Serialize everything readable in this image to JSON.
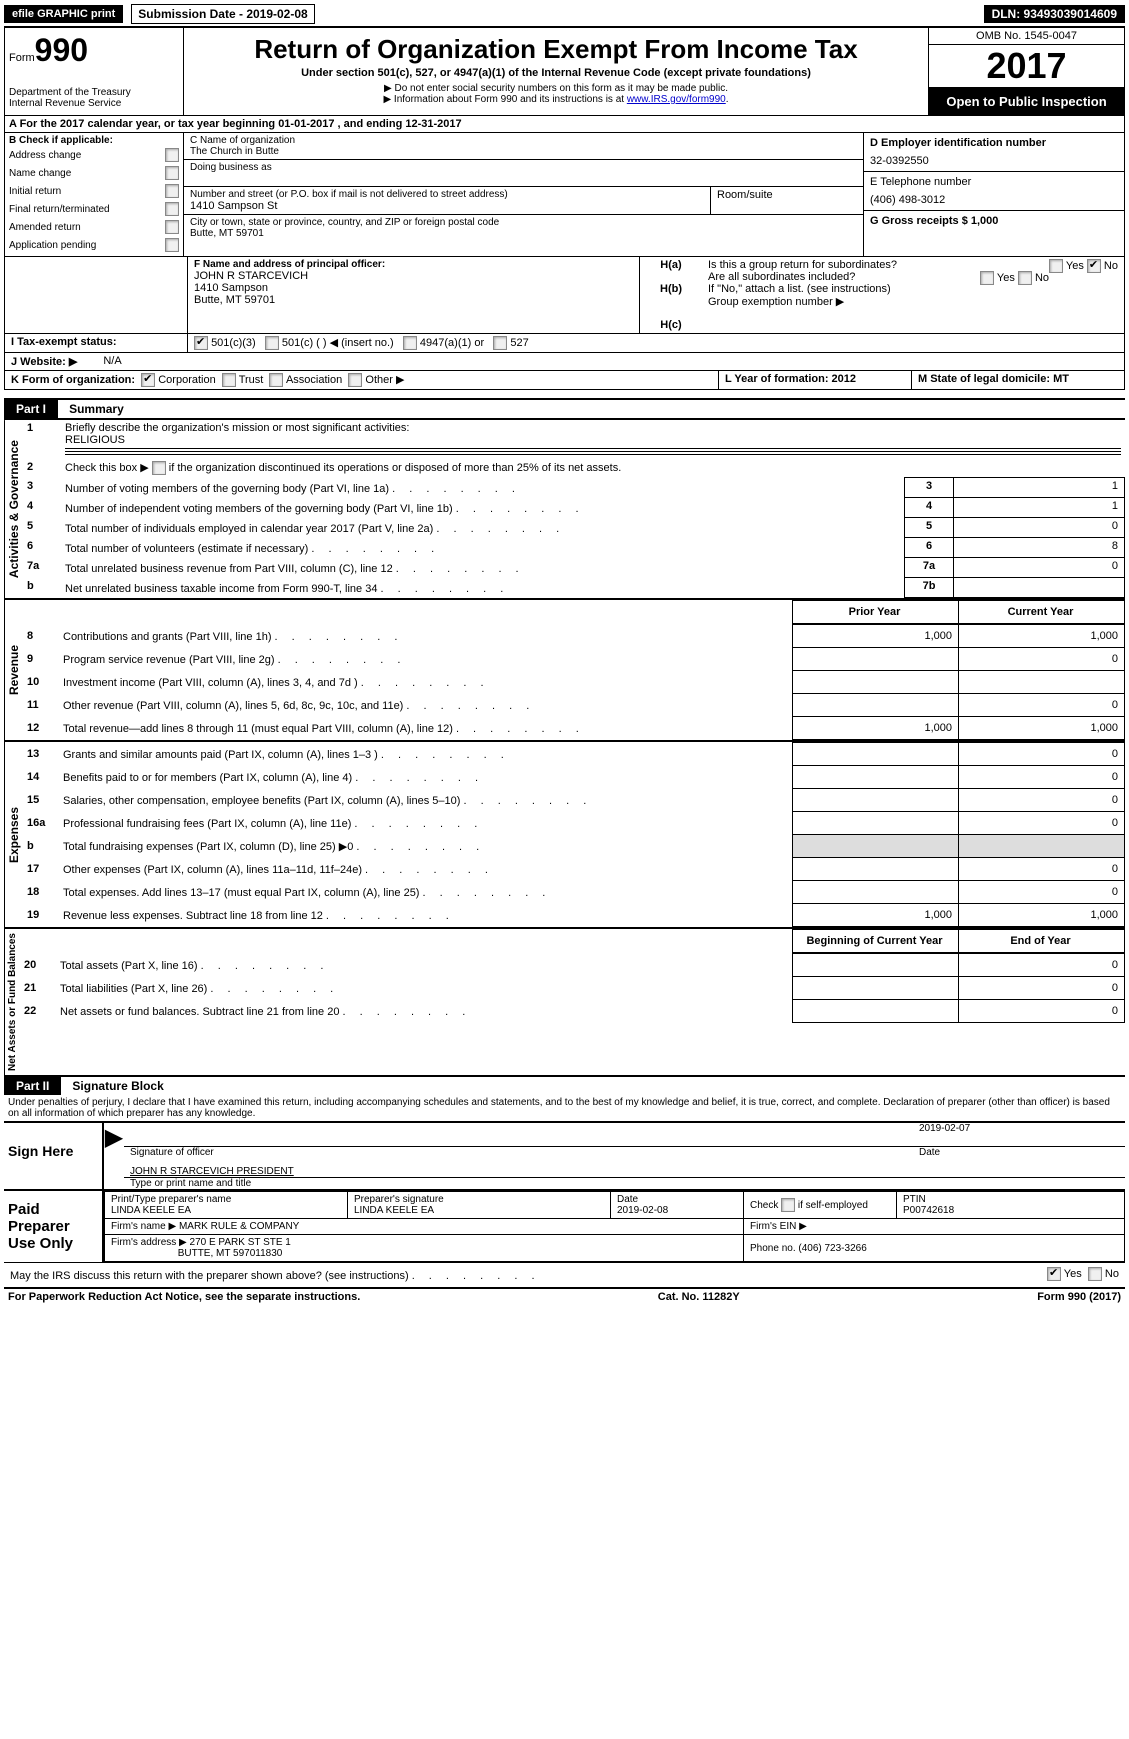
{
  "top": {
    "efile": "efile GRAPHIC print",
    "submission": "Submission Date - 2019-02-08",
    "dln": "DLN: 93493039014609"
  },
  "header": {
    "form_prefix": "Form",
    "form_number": "990",
    "dept1": "Department of the Treasury",
    "dept2": "Internal Revenue Service",
    "title": "Return of Organization Exempt From Income Tax",
    "subtitle": "Under section 501(c), 527, or 4947(a)(1) of the Internal Revenue Code (except private foundations)",
    "note1": "▶ Do not enter social security numbers on this form as it may be made public.",
    "note2_pre": "▶ Information about Form 990 and its instructions is at ",
    "note2_link": "www.IRS.gov/form990",
    "note2_post": ".",
    "omb": "OMB No. 1545-0047",
    "year": "2017",
    "open": "Open to Public Inspection"
  },
  "lineA": "A   For the 2017 calendar year, or tax year beginning 01-01-2017       , and ending 12-31-2017",
  "colB": {
    "heading": "B Check if applicable:",
    "items": [
      "Address change",
      "Name change",
      "Initial return",
      "Final return/terminated",
      "Amended return",
      "Application pending"
    ]
  },
  "colC": {
    "name_label": "C Name of organization",
    "name": "The Church in Butte",
    "dba_label": "Doing business as",
    "street_label": "Number and street (or P.O. box if mail is not delivered to street address)",
    "street": "1410 Sampson St",
    "room_label": "Room/suite",
    "city_label": "City or town, state or province, country, and ZIP or foreign postal code",
    "city": "Butte, MT  59701",
    "officer_label": "F Name and address of principal officer:",
    "officer_name": "JOHN R STARCEVICH",
    "officer_addr1": "1410 Sampson",
    "officer_addr2": "Butte, MT  59701"
  },
  "colD": {
    "ein_label": "D Employer identification number",
    "ein": "32-0392550",
    "phone_label": "E Telephone number",
    "phone": "(406) 498-3012",
    "gross_label": "G Gross receipts $ 1,000"
  },
  "colH": {
    "ha": "Is this a group return for subordinates?",
    "hb": "Are all subordinates included?",
    "hb_note": "If \"No,\" attach a list. (see instructions)",
    "hc": "Group exemption number ▶"
  },
  "rowI": {
    "label": "I     Tax-exempt status:",
    "opt1": "501(c)(3)",
    "opt2": "501(c) (   ) ◀ (insert no.)",
    "opt3": "4947(a)(1) or",
    "opt4": "527"
  },
  "rowJ": {
    "label": "J   Website: ▶",
    "val": "N/A"
  },
  "rowK": {
    "label": "K Form of organization:",
    "opts": [
      "Corporation",
      "Trust",
      "Association",
      "Other ▶"
    ]
  },
  "rowL": {
    "label": "L Year of formation: 2012"
  },
  "rowM": {
    "label": "M State of legal domicile: MT"
  },
  "part1": {
    "header": "Part I",
    "title": "Summary",
    "side_gov": "Activities & Governance",
    "side_rev": "Revenue",
    "side_exp": "Expenses",
    "side_net": "Net Assets or Fund Balances",
    "line1": "Briefly describe the organization's mission or most significant activities:",
    "mission": "RELIGIOUS",
    "line2": "Check this box ▶          if the organization discontinued its operations or disposed of more than 25% of its net assets.",
    "rows_gov": [
      {
        "n": "3",
        "t": "Number of voting members of the governing body (Part VI, line 1a)",
        "box": "3",
        "v": "1"
      },
      {
        "n": "4",
        "t": "Number of independent voting members of the governing body (Part VI, line 1b)",
        "box": "4",
        "v": "1"
      },
      {
        "n": "5",
        "t": "Total number of individuals employed in calendar year 2017 (Part V, line 2a)",
        "box": "5",
        "v": "0"
      },
      {
        "n": "6",
        "t": "Total number of volunteers (estimate if necessary)",
        "box": "6",
        "v": "8"
      },
      {
        "n": "7a",
        "t": "Total unrelated business revenue from Part VIII, column (C), line 12",
        "box": "7a",
        "v": "0"
      },
      {
        "n": "b",
        "t": "Net unrelated business taxable income from Form 990-T, line 34",
        "box": "7b",
        "v": ""
      }
    ],
    "prior": "Prior Year",
    "current": "Current Year",
    "rows_rev": [
      {
        "n": "8",
        "t": "Contributions and grants (Part VIII, line 1h)",
        "p": "1,000",
        "c": "1,000"
      },
      {
        "n": "9",
        "t": "Program service revenue (Part VIII, line 2g)",
        "p": "",
        "c": "0"
      },
      {
        "n": "10",
        "t": "Investment income (Part VIII, column (A), lines 3, 4, and 7d )",
        "p": "",
        "c": ""
      },
      {
        "n": "11",
        "t": "Other revenue (Part VIII, column (A), lines 5, 6d, 8c, 9c, 10c, and 11e)",
        "p": "",
        "c": "0"
      },
      {
        "n": "12",
        "t": "Total revenue—add lines 8 through 11 (must equal Part VIII, column (A), line 12)",
        "p": "1,000",
        "c": "1,000"
      }
    ],
    "rows_exp": [
      {
        "n": "13",
        "t": "Grants and similar amounts paid (Part IX, column (A), lines 1–3 )",
        "p": "",
        "c": "0"
      },
      {
        "n": "14",
        "t": "Benefits paid to or for members (Part IX, column (A), line 4)",
        "p": "",
        "c": "0"
      },
      {
        "n": "15",
        "t": "Salaries, other compensation, employee benefits (Part IX, column (A), lines 5–10)",
        "p": "",
        "c": "0"
      },
      {
        "n": "16a",
        "t": "Professional fundraising fees (Part IX, column (A), line 11e)",
        "p": "",
        "c": "0"
      },
      {
        "n": "b",
        "t": "Total fundraising expenses (Part IX, column (D), line 25) ▶0",
        "p": "GRAY",
        "c": "GRAY"
      },
      {
        "n": "17",
        "t": "Other expenses (Part IX, column (A), lines 11a–11d, 11f–24e)",
        "p": "",
        "c": "0"
      },
      {
        "n": "18",
        "t": "Total expenses. Add lines 13–17 (must equal Part IX, column (A), line 25)",
        "p": "",
        "c": "0"
      },
      {
        "n": "19",
        "t": "Revenue less expenses. Subtract line 18 from line 12",
        "p": "1,000",
        "c": "1,000"
      }
    ],
    "begin": "Beginning of Current Year",
    "end": "End of Year",
    "rows_net": [
      {
        "n": "20",
        "t": "Total assets (Part X, line 16)",
        "p": "",
        "c": "0"
      },
      {
        "n": "21",
        "t": "Total liabilities (Part X, line 26)",
        "p": "",
        "c": "0"
      },
      {
        "n": "22",
        "t": "Net assets or fund balances. Subtract line 21 from line 20",
        "p": "",
        "c": "0"
      }
    ]
  },
  "part2": {
    "header": "Part II",
    "title": "Signature Block",
    "decl": "Under penalties of perjury, I declare that I have examined this return, including accompanying schedules and statements, and to the best of my knowledge and belief, it is true, correct, and complete. Declaration of preparer (other than officer) is based on all information of which preparer has any knowledge.",
    "sign_here": "Sign Here",
    "sig_officer": "Signature of officer",
    "sig_date": "2019-02-07",
    "date_lbl": "Date",
    "officer_name": "JOHN R STARCEVICH  PRESIDENT",
    "type_name": "Type or print name and title",
    "paid": "Paid Preparer Use Only",
    "prep_name_lbl": "Print/Type preparer's name",
    "prep_name": "LINDA KEELE EA",
    "prep_sig_lbl": "Preparer's signature",
    "prep_sig": "LINDA KEELE EA",
    "prep_date_lbl": "Date",
    "prep_date": "2019-02-08",
    "self_emp": "Check          if self-employed",
    "ptin_lbl": "PTIN",
    "ptin": "P00742618",
    "firm_name_lbl": "Firm's name    ▶",
    "firm_name": "MARK RULE & COMPANY",
    "firm_ein_lbl": "Firm's EIN ▶",
    "firm_addr_lbl": "Firm's address ▶",
    "firm_addr1": "270 E PARK ST STE 1",
    "firm_addr2": "BUTTE, MT  597011830",
    "firm_phone_lbl": "Phone no. (406) 723-3266",
    "discuss": "May the IRS discuss this return with the preparer shown above? (see instructions)"
  },
  "footer": {
    "left": "For Paperwork Reduction Act Notice, see the separate instructions.",
    "mid": "Cat. No. 11282Y",
    "right": "Form 990 (2017)"
  }
}
